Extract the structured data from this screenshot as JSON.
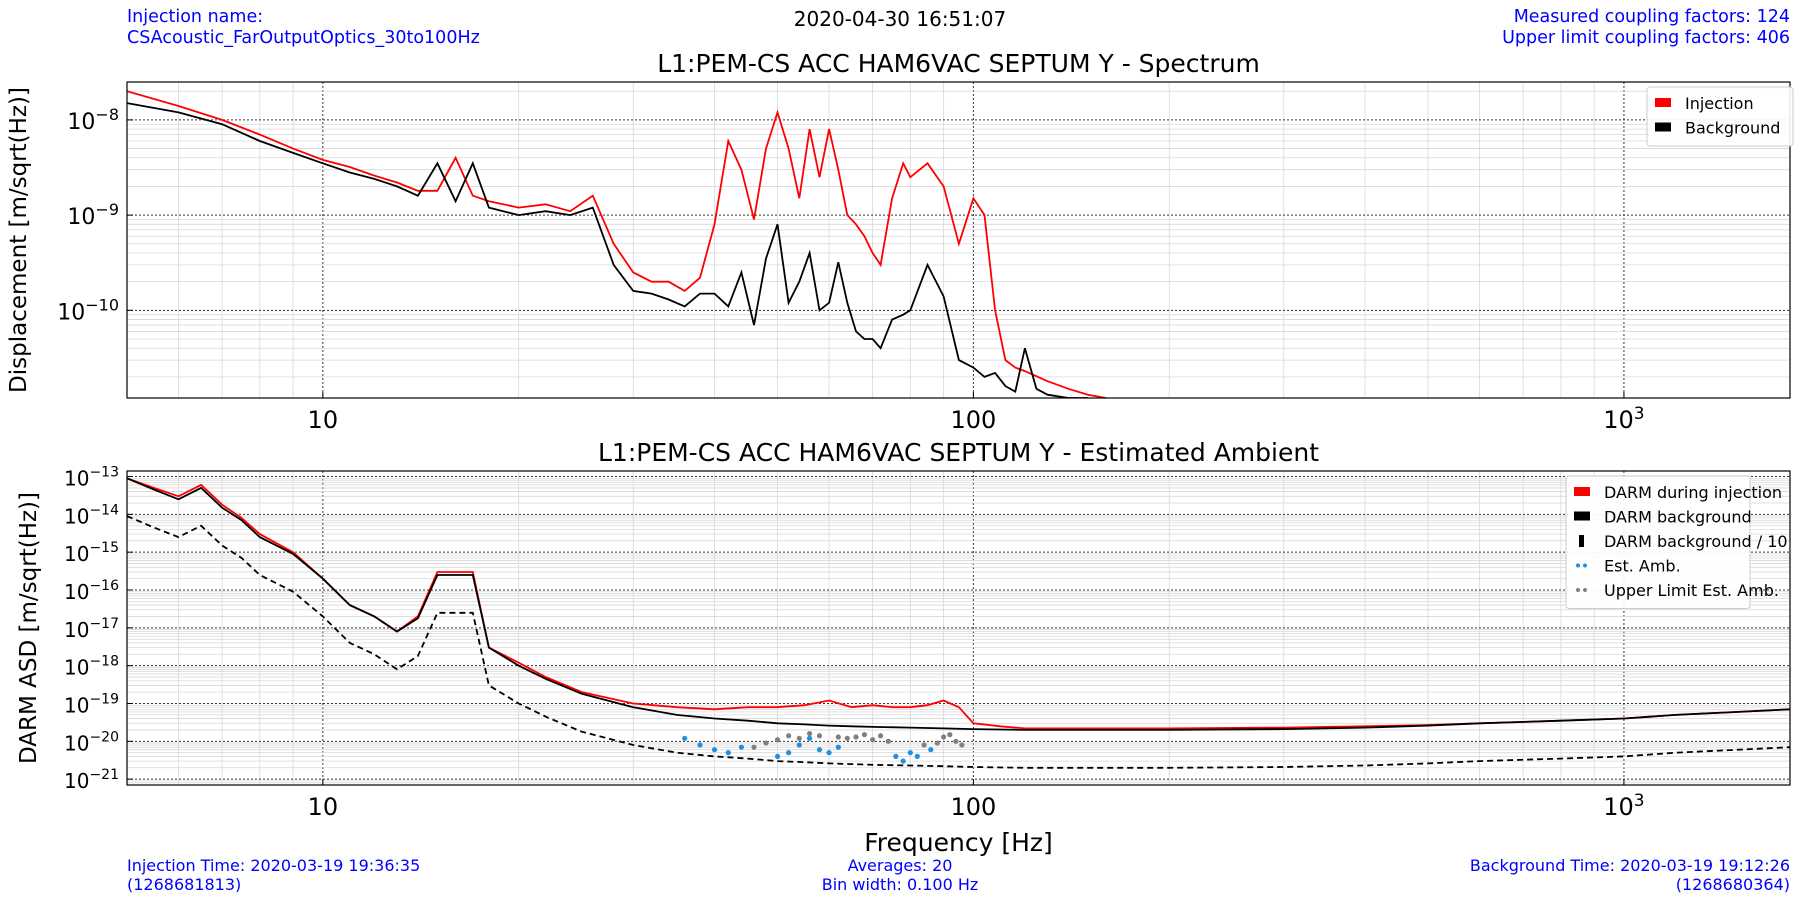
{
  "header": {
    "injection_label": "Injection name:",
    "injection_name": "CSAcoustic_FarOutputOptics_30to100Hz",
    "datetime": "2020-04-30 16:51:07",
    "measured_factors": "Measured coupling factors: 124",
    "upper_limit_factors": "Upper limit coupling factors: 406"
  },
  "footer": {
    "injection_time": "Injection Time: 2020-03-19 19:36:35",
    "injection_gps": "(1268681813)",
    "averages": "Averages: 20",
    "bin_width": "Bin width: 0.100 Hz",
    "background_time": "Background Time: 2020-03-19 19:12:26",
    "background_gps": "(1268680364)"
  },
  "colors": {
    "injection": "#ff0000",
    "background": "#000000",
    "est_amb": "#1f8fe0",
    "upper_limit": "#808080",
    "meta_text": "#0000ff"
  },
  "chart_data": [
    {
      "type": "line",
      "title": "L1:PEM-CS ACC HAM6VAC SEPTUM Y - Spectrum",
      "xlabel": "",
      "ylabel": "Displacement [m/sqrt(Hz)]",
      "xscale": "log",
      "yscale": "log",
      "xlim": [
        5,
        1800
      ],
      "ylim": [
        1.2e-11,
        2.5e-08
      ],
      "xticks": [
        10,
        100,
        1000
      ],
      "xticklabels": [
        "10",
        "100",
        "10^3"
      ],
      "yticks": [
        1e-10,
        1e-09,
        1e-08
      ],
      "yticklabels": [
        "10^-10",
        "10^-9",
        "10^-8"
      ],
      "grid": true,
      "legend_position": "top-right",
      "series": [
        {
          "name": "Injection",
          "color": "#ff0000",
          "style": "solid",
          "x": [
            5,
            6,
            7,
            8,
            9,
            10,
            11,
            12,
            13,
            14,
            15,
            16,
            17,
            18,
            20,
            22,
            24,
            26,
            28,
            30,
            32,
            34,
            36,
            38,
            40,
            42,
            44,
            46,
            48,
            50,
            52,
            54,
            56,
            58,
            60,
            62,
            64,
            66,
            68,
            70,
            72,
            75,
            78,
            80,
            85,
            90,
            95,
            100,
            104,
            108,
            112,
            116,
            120,
            130,
            140,
            150,
            160
          ],
          "y": [
            2e-08,
            1.4e-08,
            1e-08,
            7e-09,
            5e-09,
            3.8e-09,
            3.2e-09,
            2.6e-09,
            2.2e-09,
            1.8e-09,
            1.8e-09,
            4e-09,
            1.6e-09,
            1.4e-09,
            1.2e-09,
            1.3e-09,
            1.1e-09,
            1.6e-09,
            5e-10,
            2.5e-10,
            2e-10,
            2e-10,
            1.6e-10,
            2.2e-10,
            8e-10,
            6e-09,
            3e-09,
            9e-10,
            5e-09,
            1.2e-08,
            5e-09,
            1.5e-09,
            8e-09,
            2.5e-09,
            8e-09,
            3e-09,
            1e-09,
            8e-10,
            6e-10,
            4e-10,
            3e-10,
            1.5e-09,
            3.5e-09,
            2.5e-09,
            3.5e-09,
            2e-09,
            5e-10,
            1.5e-09,
            1e-09,
            1e-10,
            3e-11,
            2.5e-11,
            2.3e-11,
            1.8e-11,
            1.5e-11,
            1.3e-11,
            1.2e-11
          ]
        },
        {
          "name": "Background",
          "color": "#000000",
          "style": "solid",
          "x": [
            5,
            6,
            7,
            8,
            9,
            10,
            11,
            12,
            13,
            14,
            15,
            16,
            17,
            18,
            20,
            22,
            24,
            26,
            28,
            30,
            32,
            34,
            36,
            38,
            40,
            42,
            44,
            46,
            48,
            50,
            52,
            54,
            56,
            58,
            60,
            62,
            64,
            66,
            68,
            70,
            72,
            75,
            78,
            80,
            85,
            90,
            95,
            100,
            104,
            108,
            112,
            116,
            120,
            125,
            130,
            140,
            150
          ],
          "y": [
            1.5e-08,
            1.2e-08,
            9e-09,
            6e-09,
            4.5e-09,
            3.5e-09,
            2.8e-09,
            2.4e-09,
            2e-09,
            1.6e-09,
            3.5e-09,
            1.4e-09,
            3.5e-09,
            1.2e-09,
            1e-09,
            1.1e-09,
            1e-09,
            1.2e-09,
            3e-10,
            1.6e-10,
            1.5e-10,
            1.3e-10,
            1.1e-10,
            1.5e-10,
            1.5e-10,
            1.1e-10,
            2.5e-10,
            7e-11,
            3.5e-10,
            8e-10,
            1.2e-10,
            2e-10,
            4e-10,
            1e-10,
            1.2e-10,
            3.2e-10,
            1.2e-10,
            6e-11,
            5e-11,
            5e-11,
            4e-11,
            8e-11,
            9e-11,
            1e-10,
            3e-10,
            1.4e-10,
            3e-11,
            2.5e-11,
            2e-11,
            2.2e-11,
            1.6e-11,
            1.4e-11,
            4e-11,
            1.5e-11,
            1.3e-11,
            1.2e-11,
            1.2e-11
          ]
        }
      ]
    },
    {
      "type": "line",
      "title": "L1:PEM-CS ACC HAM6VAC SEPTUM Y - Estimated Ambient",
      "xlabel": "Frequency [Hz]",
      "ylabel": "DARM ASD [m/sqrt(Hz)]",
      "xscale": "log",
      "yscale": "log",
      "xlim": [
        5,
        1800
      ],
      "ylim": [
        7e-22,
        1.4e-13
      ],
      "xticks": [
        10,
        100,
        1000
      ],
      "xticklabels": [
        "10",
        "100",
        "10^3"
      ],
      "yticks": [
        1e-21,
        1e-20,
        1e-19,
        1e-18,
        1e-17,
        1e-16,
        1e-15,
        1e-14,
        1e-13
      ],
      "yticklabels": [
        "10^-21",
        "10^-20",
        "10^-19",
        "10^-18",
        "10^-17",
        "10^-16",
        "10^-15",
        "10^-14",
        "10^-13"
      ],
      "grid": true,
      "legend_position": "top-right",
      "series": [
        {
          "name": "DARM during injection",
          "color": "#ff0000",
          "style": "solid",
          "x": [
            5,
            5.5,
            6,
            6.5,
            7,
            7.5,
            8,
            9,
            10,
            11,
            12,
            13,
            14,
            15,
            16,
            17,
            18,
            20,
            22,
            25,
            30,
            35,
            40,
            45,
            50,
            55,
            60,
            65,
            70,
            75,
            80,
            85,
            90,
            95,
            100,
            110,
            120,
            150,
            180,
            200,
            300,
            400,
            500,
            600,
            800,
            1000,
            1200,
            1500,
            1800
          ],
          "y": [
            9e-14,
            5e-14,
            3e-14,
            6e-14,
            1.8e-14,
            8e-15,
            3e-15,
            1e-15,
            2e-16,
            4e-17,
            2e-17,
            8e-18,
            2e-17,
            3e-16,
            3e-16,
            3e-16,
            3e-18,
            1.2e-18,
            5e-19,
            2e-19,
            1e-19,
            8e-20,
            7e-20,
            8e-20,
            8e-20,
            9e-20,
            1.2e-19,
            8e-20,
            9e-20,
            8e-20,
            8e-20,
            9e-20,
            1.2e-19,
            8e-20,
            3e-20,
            2.5e-20,
            2.2e-20,
            2.2e-20,
            2.2e-20,
            2.2e-20,
            2.3e-20,
            2.5e-20,
            2.7e-20,
            3e-20,
            3.5e-20,
            4e-20,
            5e-20,
            6e-20,
            7e-20
          ]
        },
        {
          "name": "DARM background",
          "color": "#000000",
          "style": "solid",
          "x": [
            5,
            5.5,
            6,
            6.5,
            7,
            7.5,
            8,
            9,
            10,
            11,
            12,
            13,
            14,
            15,
            16,
            17,
            18,
            20,
            22,
            25,
            30,
            35,
            40,
            45,
            50,
            55,
            60,
            65,
            70,
            80,
            90,
            100,
            120,
            150,
            180,
            200,
            300,
            400,
            500,
            600,
            800,
            1000,
            1200,
            1500,
            1800
          ],
          "y": [
            9e-14,
            4.5e-14,
            2.5e-14,
            5e-14,
            1.5e-14,
            7e-15,
            2.5e-15,
            9e-16,
            2e-16,
            4e-17,
            2e-17,
            8e-18,
            1.8e-17,
            2.5e-16,
            2.5e-16,
            2.5e-16,
            3e-18,
            1e-18,
            4.5e-19,
            1.8e-19,
            8e-20,
            5e-20,
            4e-20,
            3.5e-20,
            3e-20,
            2.8e-20,
            2.6e-20,
            2.5e-20,
            2.4e-20,
            2.3e-20,
            2.2e-20,
            2.1e-20,
            2e-20,
            2e-20,
            2e-20,
            2e-20,
            2.1e-20,
            2.3e-20,
            2.6e-20,
            3e-20,
            3.5e-20,
            4e-20,
            5e-20,
            6e-20,
            7e-20
          ]
        },
        {
          "name": "DARM background / 10",
          "color": "#000000",
          "style": "dashed",
          "x": [
            5,
            5.5,
            6,
            6.5,
            7,
            7.5,
            8,
            9,
            10,
            11,
            12,
            13,
            14,
            15,
            16,
            17,
            18,
            20,
            22,
            25,
            30,
            35,
            40,
            45,
            50,
            55,
            60,
            65,
            70,
            80,
            90,
            100,
            120,
            150,
            180,
            200,
            300,
            400,
            500,
            600,
            800,
            1000,
            1200,
            1500,
            1800
          ],
          "y": [
            9e-15,
            4.5e-15,
            2.5e-15,
            5e-15,
            1.5e-15,
            7e-16,
            2.5e-16,
            9e-17,
            2e-17,
            4e-18,
            2e-18,
            8e-19,
            1.8e-18,
            2.5e-17,
            2.5e-17,
            2.5e-17,
            3e-19,
            1e-19,
            4.5e-20,
            1.8e-20,
            8e-21,
            5e-21,
            4e-21,
            3.5e-21,
            3e-21,
            2.8e-21,
            2.6e-21,
            2.5e-21,
            2.4e-21,
            2.3e-21,
            2.2e-21,
            2.1e-21,
            2e-21,
            2e-21,
            2e-21,
            2e-21,
            2.1e-21,
            2.3e-21,
            2.6e-21,
            3e-21,
            3.5e-21,
            4e-21,
            5e-21,
            6e-21,
            7e-21
          ]
        },
        {
          "name": "Est. Amb.",
          "color": "#1f8fe0",
          "style": "dots",
          "x": [
            36,
            38,
            40,
            42,
            44,
            50,
            52,
            54,
            56,
            58,
            60,
            62,
            76,
            78,
            80,
            82,
            86
          ],
          "y": [
            1.2e-20,
            8e-21,
            6e-21,
            5e-21,
            7e-21,
            4e-21,
            5e-21,
            8e-21,
            1.2e-20,
            6e-21,
            5e-21,
            7e-21,
            4e-21,
            3e-21,
            5e-21,
            4e-21,
            6e-21
          ]
        },
        {
          "name": "Upper Limit Est. Amb.",
          "color": "#808080",
          "style": "dots",
          "x": [
            46,
            48,
            50,
            52,
            54,
            56,
            58,
            62,
            64,
            66,
            68,
            70,
            72,
            74,
            84,
            88,
            90,
            92,
            94,
            96
          ],
          "y": [
            7e-21,
            9e-21,
            1.1e-20,
            1.4e-20,
            1.2e-20,
            1.6e-20,
            1.4e-20,
            1.3e-20,
            1.2e-20,
            1.3e-20,
            1.5e-20,
            1.1e-20,
            1.4e-20,
            1e-20,
            8e-21,
            9e-21,
            1.3e-20,
            1.5e-20,
            1e-20,
            8e-21
          ]
        }
      ]
    }
  ]
}
